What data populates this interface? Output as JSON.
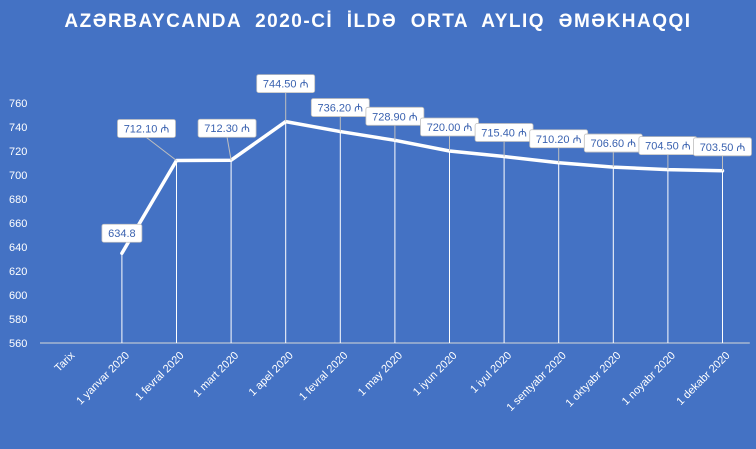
{
  "chart_data": {
    "type": "line",
    "title": "AZƏRBAYCANDA  2020-Cİ  İLDƏ  ORTA  AYLIQ  ƏMƏKHAQQI",
    "xlabel": "",
    "ylabel": "",
    "ylim": [
      560,
      760
    ],
    "yticks": [
      560,
      580,
      600,
      620,
      640,
      660,
      680,
      700,
      720,
      740,
      760
    ],
    "categories": [
      "Tarix",
      "1 yanvar 2020",
      "1 fevral 2020",
      "1 mart 2020",
      "1 apel 2020",
      "1 fevral 2020",
      "1 may 2020",
      "1 iyun 2020",
      "1 iyul 2020",
      "1 sentyabr 2020",
      "1 oktyabr 2020",
      "1 noyabr 2020",
      "1 dekabr 2020"
    ],
    "series": [
      {
        "values": [
          null,
          634.8,
          712.1,
          712.3,
          744.5,
          736.2,
          728.9,
          720.0,
          715.4,
          710.2,
          706.6,
          704.5,
          703.5
        ],
        "labels": [
          null,
          "634.8",
          "712.10 ₼",
          "712.30 ₼",
          "744.50 ₼",
          "736.20 ₼",
          "728.90 ₼",
          "720.00 ₼",
          "715.40 ₼",
          "710.20 ₼",
          "706.60 ₼",
          "704.50 ₼",
          "703.50 ₼"
        ]
      }
    ],
    "drop_lines": true,
    "grid": false,
    "colors": {
      "background": "#4472c4",
      "line": "#ffffff",
      "label_text": "#3a62b0"
    }
  }
}
